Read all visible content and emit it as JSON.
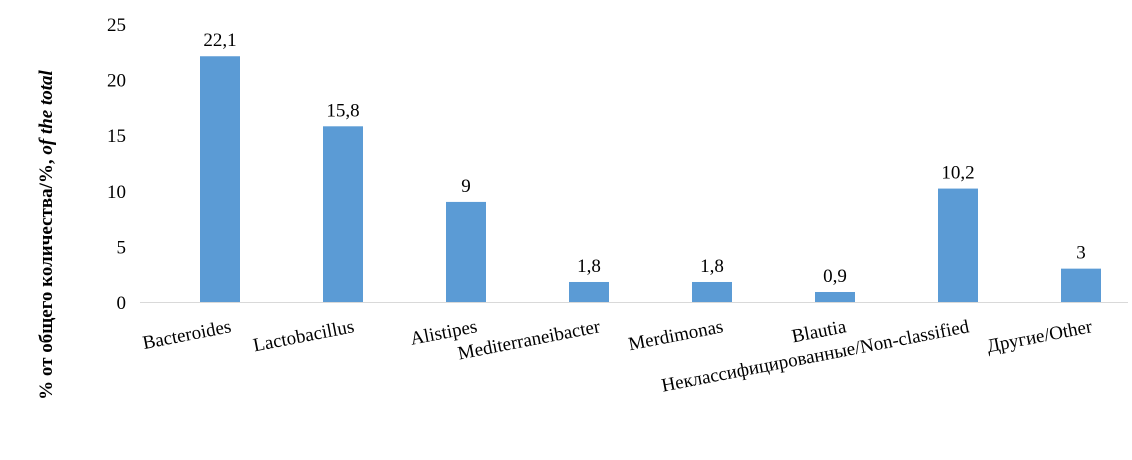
{
  "chart_data": {
    "type": "bar",
    "categories": [
      "Bacteroides",
      "Lactobacillus",
      "Alistipes",
      "Mediterraneibacter",
      "Merdimonas",
      "Blautia",
      "Неклассифицированные/Non-classified",
      "Другие/Other"
    ],
    "values": [
      22.1,
      15.8,
      9,
      1.8,
      1.8,
      0.9,
      10.2,
      3
    ],
    "data_labels": [
      "22,1",
      "15,8",
      "9",
      "1,8",
      "1,8",
      "0,9",
      "10,2",
      "3"
    ],
    "y_ticks": [
      "0",
      "5",
      "10",
      "15",
      "20",
      "25"
    ],
    "ylim": [
      0,
      25
    ],
    "ylabel_plain": "% от общего количества/%, ",
    "ylabel_italic": "of the total",
    "grid": false,
    "legend": "none",
    "bar_color": "#5b9bd5"
  }
}
